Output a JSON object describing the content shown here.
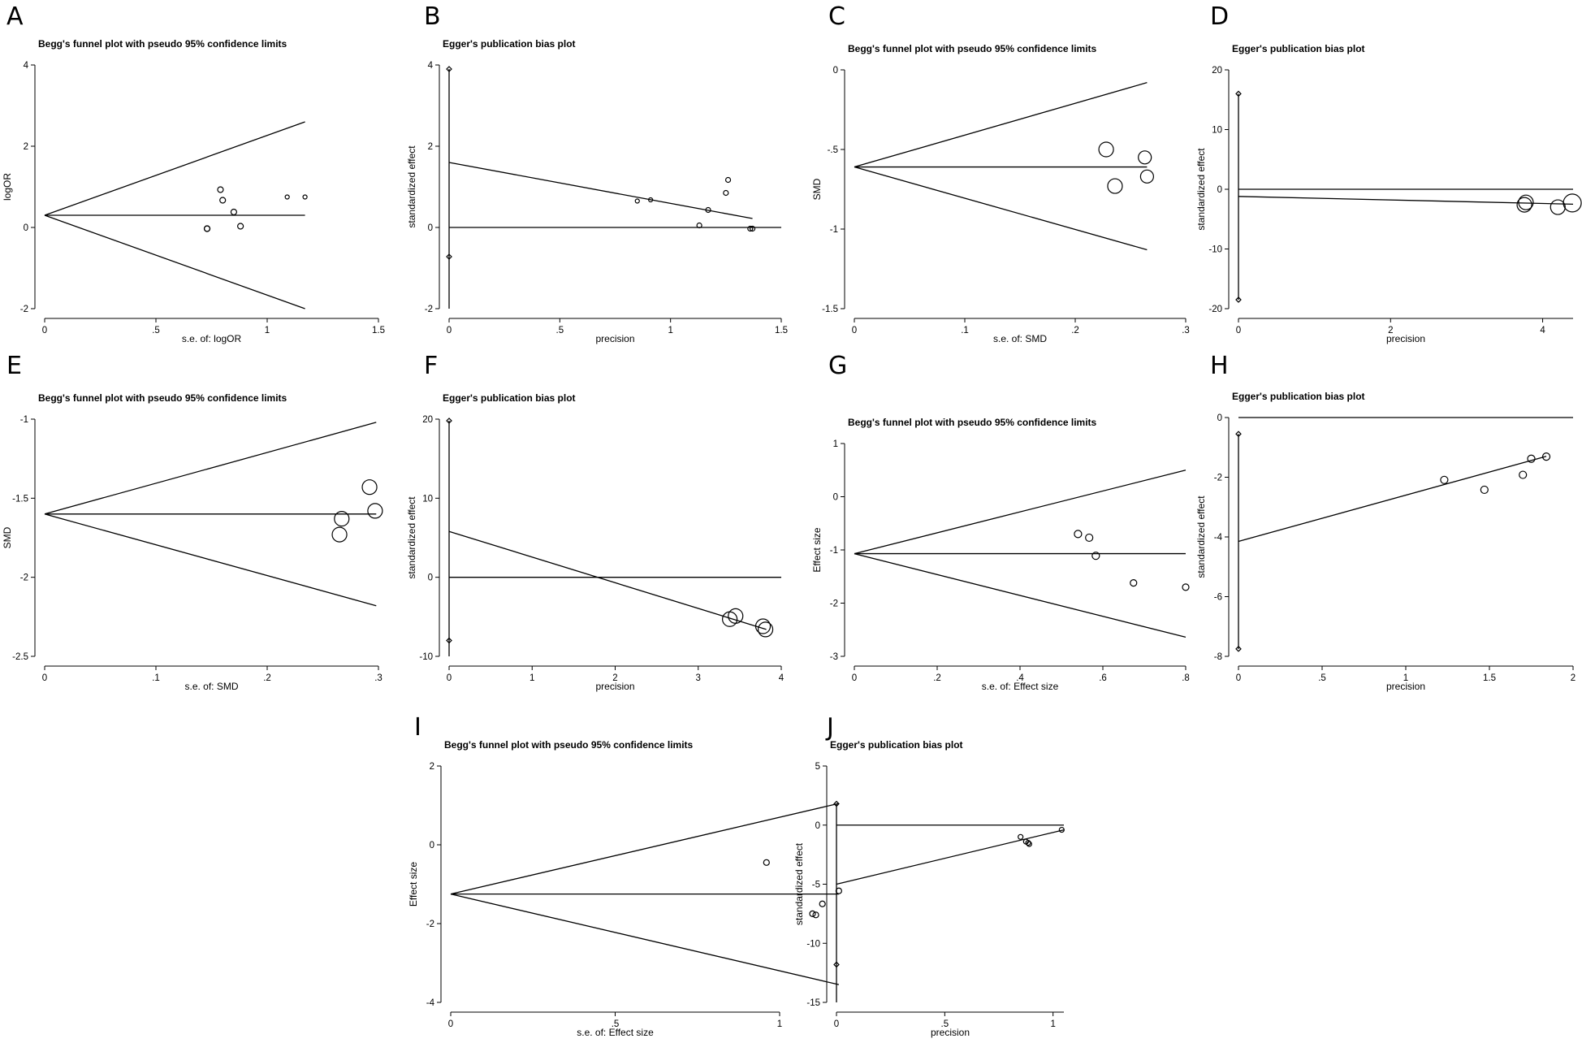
{
  "chart_data": [
    {
      "type": "scatter",
      "letter": "A",
      "title": "Begg's funnel plot with pseudo 95% confidence limits",
      "xlabel": "s.e. of: logOR",
      "ylabel": "logOR",
      "xlim": [
        0,
        1.5
      ],
      "ylim": [
        -2,
        4
      ],
      "xticks": [
        {
          "v": 0,
          "t": "0"
        },
        {
          "v": 0.5,
          "t": ".5"
        },
        {
          "v": 1,
          "t": "1"
        },
        {
          "v": 1.5,
          "t": "1.5"
        }
      ],
      "yticks": [
        {
          "v": -2,
          "t": "-2"
        },
        {
          "v": 0,
          "t": "0"
        },
        {
          "v": 2,
          "t": "2"
        },
        {
          "v": 4,
          "t": "4"
        }
      ],
      "lines": [
        {
          "name": "pooled estimate",
          "x": [
            0,
            1.17
          ],
          "y": [
            0.3,
            0.3
          ]
        },
        {
          "name": "upper limit",
          "x": [
            0,
            1.17
          ],
          "y": [
            0.3,
            2.6
          ]
        },
        {
          "name": "lower limit",
          "x": [
            0,
            1.17
          ],
          "y": [
            0.3,
            -2.0
          ]
        }
      ],
      "points": [
        {
          "x": 0.73,
          "y": -0.03,
          "r": 3.5
        },
        {
          "x": 0.73,
          "y": -0.03,
          "r": 3.5
        },
        {
          "x": 0.79,
          "y": 0.93,
          "r": 3.5
        },
        {
          "x": 0.8,
          "y": 0.67,
          "r": 3.5
        },
        {
          "x": 0.85,
          "y": 0.38,
          "r": 3.5
        },
        {
          "x": 0.88,
          "y": 0.03,
          "r": 3.5
        },
        {
          "x": 1.09,
          "y": 0.75,
          "r": 2.5
        },
        {
          "x": 1.17,
          "y": 0.75,
          "r": 2.5
        }
      ]
    },
    {
      "type": "scatter",
      "letter": "B",
      "title": "Egger's publication bias plot",
      "xlabel": "precision",
      "ylabel": "standardized effect",
      "xlim": [
        0,
        1.5
      ],
      "ylim": [
        -2,
        4
      ],
      "xticks": [
        {
          "v": 0,
          "t": "0"
        },
        {
          "v": 0.5,
          "t": ".5"
        },
        {
          "v": 1,
          "t": "1"
        },
        {
          "v": 1.5,
          "t": "1.5"
        }
      ],
      "yticks": [
        {
          "v": -2,
          "t": "-2"
        },
        {
          "v": 0,
          "t": "0"
        },
        {
          "v": 2,
          "t": "2"
        },
        {
          "v": 4,
          "t": "4"
        }
      ],
      "lines": [
        {
          "name": "zero line",
          "x": [
            0,
            1.5
          ],
          "y": [
            0,
            0
          ]
        },
        {
          "name": "regression line",
          "x": [
            0,
            1.37
          ],
          "y": [
            1.6,
            0.22
          ]
        },
        {
          "name": "intercept CI",
          "x": [
            0,
            0
          ],
          "y": [
            -2,
            3.9
          ]
        }
      ],
      "diamonds": [
        {
          "x": 0,
          "y": 3.9
        },
        {
          "x": 0,
          "y": -0.72
        }
      ],
      "points": [
        {
          "x": 0.85,
          "y": 0.65,
          "r": 2.5
        },
        {
          "x": 0.91,
          "y": 0.68,
          "r": 2.5
        },
        {
          "x": 1.13,
          "y": 0.05,
          "r": 3
        },
        {
          "x": 1.17,
          "y": 0.43,
          "r": 3
        },
        {
          "x": 1.25,
          "y": 0.85,
          "r": 3
        },
        {
          "x": 1.26,
          "y": 1.17,
          "r": 3
        },
        {
          "x": 1.36,
          "y": -0.03,
          "r": 3
        },
        {
          "x": 1.37,
          "y": -0.03,
          "r": 3
        }
      ]
    },
    {
      "type": "scatter",
      "letter": "C",
      "title": "Begg's funnel plot with pseudo 95% confidence limits",
      "xlabel": "s.e. of: SMD",
      "ylabel": "SMD",
      "xlim": [
        0,
        0.3
      ],
      "ylim": [
        -1.5,
        0
      ],
      "xticks": [
        {
          "v": 0,
          "t": "0"
        },
        {
          "v": 0.1,
          "t": ".1"
        },
        {
          "v": 0.2,
          "t": ".2"
        },
        {
          "v": 0.3,
          "t": ".3"
        }
      ],
      "yticks": [
        {
          "v": -1.5,
          "t": "-1.5"
        },
        {
          "v": -1,
          "t": "-1"
        },
        {
          "v": -0.5,
          "t": "-.5"
        },
        {
          "v": 0,
          "t": "0"
        }
      ],
      "lines": [
        {
          "name": "pooled estimate",
          "x": [
            0,
            0.265
          ],
          "y": [
            -0.61,
            -0.61
          ]
        },
        {
          "name": "upper limit",
          "x": [
            0,
            0.265
          ],
          "y": [
            -0.61,
            -0.08
          ]
        },
        {
          "name": "lower limit",
          "x": [
            0,
            0.265
          ],
          "y": [
            -0.61,
            -1.13
          ]
        }
      ],
      "points": [
        {
          "x": 0.228,
          "y": -0.5,
          "r": 9
        },
        {
          "x": 0.236,
          "y": -0.73,
          "r": 9
        },
        {
          "x": 0.263,
          "y": -0.55,
          "r": 8
        },
        {
          "x": 0.265,
          "y": -0.67,
          "r": 8
        }
      ]
    },
    {
      "type": "scatter",
      "letter": "D",
      "title": "Egger's publication bias plot",
      "xlabel": "precision",
      "ylabel": "standardized effect",
      "xlim": [
        0,
        4.4
      ],
      "ylim": [
        -20,
        20
      ],
      "xticks": [
        {
          "v": 0,
          "t": "0"
        },
        {
          "v": 2,
          "t": "2"
        },
        {
          "v": 4,
          "t": "4"
        }
      ],
      "yticks": [
        {
          "v": -20,
          "t": "-20"
        },
        {
          "v": -10,
          "t": "-10"
        },
        {
          "v": 0,
          "t": "0"
        },
        {
          "v": 10,
          "t": "10"
        },
        {
          "v": 20,
          "t": "20"
        }
      ],
      "lines": [
        {
          "name": "zero line",
          "x": [
            0,
            4.4
          ],
          "y": [
            0,
            0
          ]
        },
        {
          "name": "regression line",
          "x": [
            0,
            4.4
          ],
          "y": [
            -1.2,
            -2.5
          ]
        },
        {
          "name": "intercept CI",
          "x": [
            0,
            0
          ],
          "y": [
            -18.5,
            16
          ]
        }
      ],
      "diamonds": [
        {
          "x": 0,
          "y": 16
        },
        {
          "x": 0,
          "y": -18.5
        }
      ],
      "points": [
        {
          "x": 3.78,
          "y": -2.2,
          "r": 9
        },
        {
          "x": 3.76,
          "y": -2.6,
          "r": 9
        },
        {
          "x": 4.2,
          "y": -3.0,
          "r": 9
        },
        {
          "x": 4.39,
          "y": -2.3,
          "r": 11
        }
      ]
    },
    {
      "type": "scatter",
      "letter": "E",
      "title": "Begg's funnel plot with pseudo 95% confidence limits",
      "xlabel": "s.e. of: SMD",
      "ylabel": "SMD",
      "xlim": [
        0,
        0.3
      ],
      "ylim": [
        -2.5,
        -1
      ],
      "xticks": [
        {
          "v": 0,
          "t": "0"
        },
        {
          "v": 0.1,
          "t": ".1"
        },
        {
          "v": 0.2,
          "t": ".2"
        },
        {
          "v": 0.3,
          "t": ".3"
        }
      ],
      "yticks": [
        {
          "v": -2.5,
          "t": "-2.5"
        },
        {
          "v": -2,
          "t": "-2"
        },
        {
          "v": -1.5,
          "t": "-1.5"
        },
        {
          "v": -1,
          "t": "-1"
        }
      ],
      "lines": [
        {
          "name": "pooled estimate",
          "x": [
            0,
            0.298
          ],
          "y": [
            -1.6,
            -1.6
          ]
        },
        {
          "name": "upper limit",
          "x": [
            0,
            0.298
          ],
          "y": [
            -1.6,
            -1.02
          ]
        },
        {
          "name": "lower limit",
          "x": [
            0,
            0.298
          ],
          "y": [
            -1.6,
            -2.18
          ]
        }
      ],
      "points": [
        {
          "x": 0.265,
          "y": -1.73,
          "r": 9
        },
        {
          "x": 0.267,
          "y": -1.63,
          "r": 9
        },
        {
          "x": 0.292,
          "y": -1.43,
          "r": 9
        },
        {
          "x": 0.297,
          "y": -1.58,
          "r": 9
        }
      ]
    },
    {
      "type": "scatter",
      "letter": "F",
      "title": "Egger's publication bias plot",
      "xlabel": "precision",
      "ylabel": "standardized effect",
      "xlim": [
        0,
        4
      ],
      "ylim": [
        -10,
        20
      ],
      "xticks": [
        {
          "v": 0,
          "t": "0"
        },
        {
          "v": 1,
          "t": "1"
        },
        {
          "v": 2,
          "t": "2"
        },
        {
          "v": 3,
          "t": "3"
        },
        {
          "v": 4,
          "t": "4"
        }
      ],
      "yticks": [
        {
          "v": -10,
          "t": "-10"
        },
        {
          "v": 0,
          "t": "0"
        },
        {
          "v": 10,
          "t": "10"
        },
        {
          "v": 20,
          "t": "20"
        }
      ],
      "lines": [
        {
          "name": "zero line",
          "x": [
            0,
            4
          ],
          "y": [
            0,
            0
          ]
        },
        {
          "name": "regression line",
          "x": [
            0,
            3.82
          ],
          "y": [
            5.8,
            -6.6
          ]
        },
        {
          "name": "intercept CI",
          "x": [
            0,
            0
          ],
          "y": [
            -10,
            19.8
          ]
        }
      ],
      "diamonds": [
        {
          "x": 0,
          "y": 19.8
        },
        {
          "x": 0,
          "y": -8.0
        }
      ],
      "points": [
        {
          "x": 3.38,
          "y": -5.3,
          "r": 9
        },
        {
          "x": 3.45,
          "y": -4.9,
          "r": 9
        },
        {
          "x": 3.78,
          "y": -6.2,
          "r": 9
        },
        {
          "x": 3.81,
          "y": -6.6,
          "r": 9
        }
      ]
    },
    {
      "type": "scatter",
      "letter": "G",
      "title": "Begg's funnel plot with pseudo 95% confidence limits",
      "xlabel": "s.e. of: Effect size",
      "ylabel": "Effect size",
      "xlim": [
        0,
        0.8
      ],
      "ylim": [
        -3,
        1
      ],
      "xticks": [
        {
          "v": 0,
          "t": "0"
        },
        {
          "v": 0.2,
          "t": ".2"
        },
        {
          "v": 0.4,
          "t": ".4"
        },
        {
          "v": 0.6,
          "t": ".6"
        },
        {
          "v": 0.8,
          "t": ".8"
        }
      ],
      "yticks": [
        {
          "v": -3,
          "t": "-3"
        },
        {
          "v": -2,
          "t": "-2"
        },
        {
          "v": -1,
          "t": "-1"
        },
        {
          "v": 0,
          "t": "0"
        },
        {
          "v": 1,
          "t": "1"
        }
      ],
      "lines": [
        {
          "name": "pooled estimate",
          "x": [
            0,
            0.8
          ],
          "y": [
            -1.07,
            -1.07
          ]
        },
        {
          "name": "upper limit",
          "x": [
            0,
            0.8
          ],
          "y": [
            -1.07,
            0.5
          ]
        },
        {
          "name": "lower limit",
          "x": [
            0,
            0.8
          ],
          "y": [
            -1.07,
            -2.64
          ]
        }
      ],
      "points": [
        {
          "x": 0.54,
          "y": -0.7,
          "r": 4.5
        },
        {
          "x": 0.567,
          "y": -0.77,
          "r": 4.5
        },
        {
          "x": 0.583,
          "y": -1.11,
          "r": 4.5
        },
        {
          "x": 0.674,
          "y": -1.62,
          "r": 4
        },
        {
          "x": 0.8,
          "y": -1.7,
          "r": 4
        }
      ]
    },
    {
      "type": "scatter",
      "letter": "H",
      "title": "Egger's publication bias plot",
      "xlabel": "precision",
      "ylabel": "standardized effect",
      "xlim": [
        0,
        2
      ],
      "ylim": [
        -8,
        0
      ],
      "xticks": [
        {
          "v": 0,
          "t": "0"
        },
        {
          "v": 0.5,
          "t": ".5"
        },
        {
          "v": 1,
          "t": "1"
        },
        {
          "v": 1.5,
          "t": "1.5"
        },
        {
          "v": 2,
          "t": "2"
        }
      ],
      "yticks": [
        {
          "v": -8,
          "t": "-8"
        },
        {
          "v": -6,
          "t": "-6"
        },
        {
          "v": -4,
          "t": "-4"
        },
        {
          "v": -2,
          "t": "-2"
        },
        {
          "v": 0,
          "t": "0"
        }
      ],
      "lines": [
        {
          "name": "zero line",
          "x": [
            0,
            2
          ],
          "y": [
            0,
            0
          ]
        },
        {
          "name": "regression line",
          "x": [
            0,
            1.84
          ],
          "y": [
            -4.15,
            -1.3
          ]
        },
        {
          "name": "intercept CI",
          "x": [
            0,
            0
          ],
          "y": [
            -7.75,
            -0.55
          ]
        }
      ],
      "diamonds": [
        {
          "x": 0,
          "y": -0.55
        },
        {
          "x": 0,
          "y": -7.75
        }
      ],
      "points": [
        {
          "x": 1.23,
          "y": -2.09,
          "r": 4.5
        },
        {
          "x": 1.47,
          "y": -2.42,
          "r": 4.5
        },
        {
          "x": 1.7,
          "y": -1.92,
          "r": 4.5
        },
        {
          "x": 1.75,
          "y": -1.38,
          "r": 4.5
        },
        {
          "x": 1.84,
          "y": -1.31,
          "r": 4.5
        }
      ]
    },
    {
      "type": "scatter",
      "letter": "I",
      "title": "Begg's funnel plot with pseudo 95% confidence limits",
      "xlabel": "s.e. of: Effect size",
      "ylabel": "Effect size",
      "xlim": [
        0,
        1
      ],
      "ylim": [
        -4,
        2
      ],
      "xticks": [
        {
          "v": 0,
          "t": "0"
        },
        {
          "v": 0.5,
          "t": ".5"
        },
        {
          "v": 1,
          "t": "1"
        }
      ],
      "yticks": [
        {
          "v": -4,
          "t": "-4"
        },
        {
          "v": -2,
          "t": "-2"
        },
        {
          "v": 0,
          "t": "0"
        },
        {
          "v": 2,
          "t": "2"
        }
      ],
      "lines": [
        {
          "name": "pooled estimate",
          "x": [
            0,
            1.18
          ],
          "y": [
            -1.25,
            -1.25
          ]
        },
        {
          "name": "upper limit",
          "x": [
            0,
            1.18
          ],
          "y": [
            -1.25,
            1.05
          ]
        },
        {
          "name": "lower limit",
          "x": [
            0,
            1.18
          ],
          "y": [
            -1.25,
            -3.55
          ]
        }
      ],
      "points": [
        {
          "x": 0.96,
          "y": -0.45,
          "r": 3.5
        },
        {
          "x": 1.13,
          "y": -1.5,
          "r": 3.5
        },
        {
          "x": 1.1,
          "y": -1.75,
          "r": 3.5
        },
        {
          "x": 1.11,
          "y": -1.78,
          "r": 3.5
        },
        {
          "x": 1.18,
          "y": -1.17,
          "r": 3.5
        }
      ]
    },
    {
      "type": "scatter",
      "letter": "J",
      "title": "Egger's publication bias plot",
      "xlabel": "precision",
      "ylabel": "standardized effect",
      "xlim": [
        0,
        1.05
      ],
      "ylim": [
        -15,
        5
      ],
      "xticks": [
        {
          "v": 0,
          "t": "0"
        },
        {
          "v": 0.5,
          "t": ".5"
        },
        {
          "v": 1,
          "t": "1"
        }
      ],
      "yticks": [
        {
          "v": -15,
          "t": "-15"
        },
        {
          "v": -10,
          "t": "-10"
        },
        {
          "v": -5,
          "t": "-5"
        },
        {
          "v": 0,
          "t": "0"
        },
        {
          "v": 5,
          "t": "5"
        }
      ],
      "lines": [
        {
          "name": "zero line",
          "x": [
            0,
            1.05
          ],
          "y": [
            0,
            0
          ]
        },
        {
          "name": "regression line",
          "x": [
            0,
            1.05
          ],
          "y": [
            -5.0,
            -0.4
          ]
        },
        {
          "name": "intercept CI",
          "x": [
            0,
            0
          ],
          "y": [
            -15,
            1.8
          ]
        }
      ],
      "diamonds": [
        {
          "x": 0,
          "y": 1.8
        },
        {
          "x": 0,
          "y": -11.8
        }
      ],
      "points": [
        {
          "x": 0.85,
          "y": -1.0,
          "r": 3
        },
        {
          "x": 0.875,
          "y": -1.4,
          "r": 3
        },
        {
          "x": 0.89,
          "y": -1.6,
          "r": 3
        },
        {
          "x": 0.885,
          "y": -1.5,
          "r": 3
        },
        {
          "x": 1.04,
          "y": -0.4,
          "r": 3
        }
      ]
    }
  ]
}
